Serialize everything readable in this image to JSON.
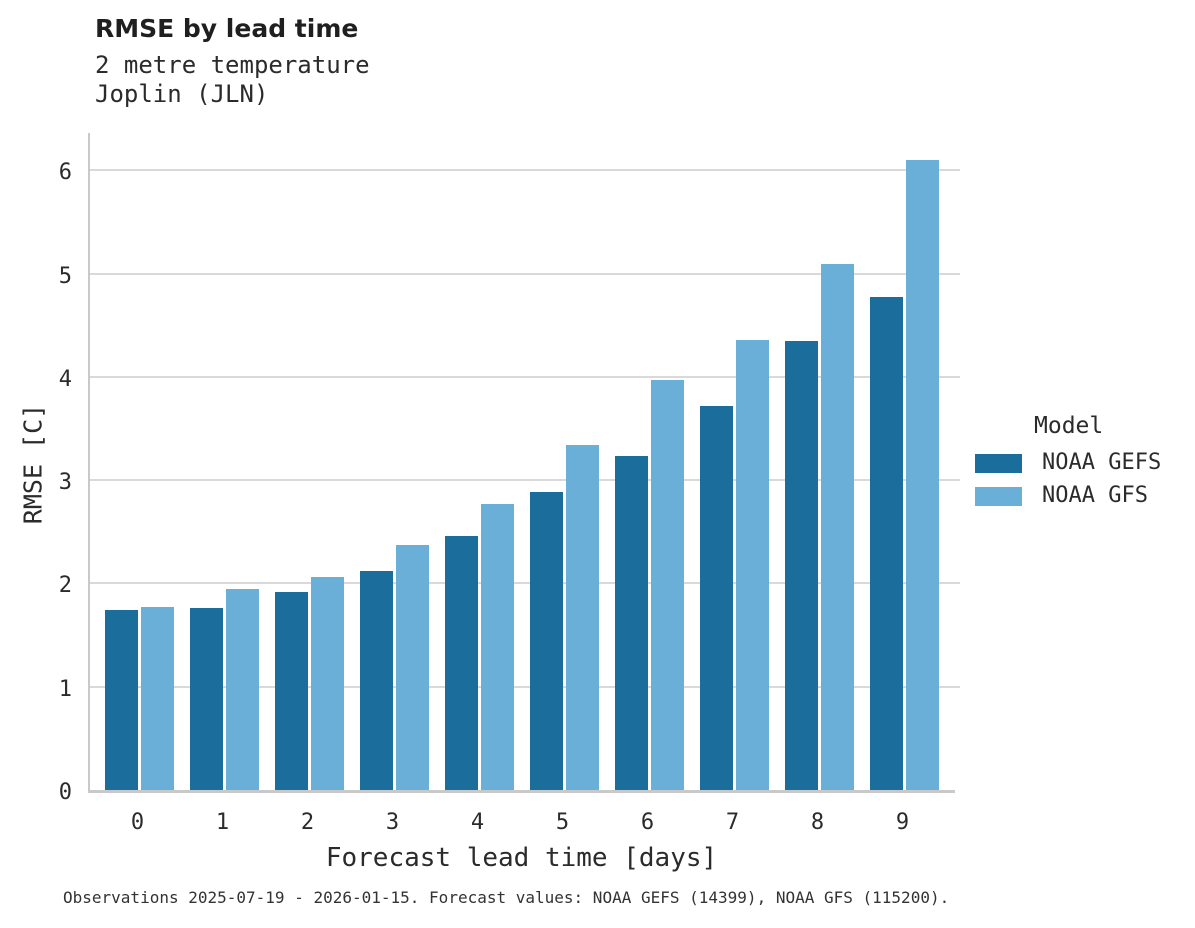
{
  "header": {
    "title": "RMSE by lead time",
    "subtitle_variable": "2 metre temperature",
    "subtitle_station": "Joplin (JLN)"
  },
  "chart_data": {
    "type": "bar",
    "title": "RMSE by lead time",
    "subtitle": [
      "2 metre temperature",
      "Joplin (JLN)"
    ],
    "categories": [
      "0",
      "1",
      "2",
      "3",
      "4",
      "5",
      "6",
      "7",
      "8",
      "9"
    ],
    "series": [
      {
        "name": "NOAA GEFS",
        "color": "#1b6e9c",
        "values": [
          1.74,
          1.76,
          1.92,
          2.12,
          2.46,
          2.89,
          3.23,
          3.72,
          4.35,
          4.77
        ]
      },
      {
        "name": "NOAA GFS",
        "color": "#6aafd8",
        "values": [
          1.77,
          1.95,
          2.06,
          2.37,
          2.77,
          3.34,
          3.97,
          4.36,
          5.09,
          6.1
        ]
      }
    ],
    "xlabel": "Forecast lead time [days]",
    "ylabel": "RMSE [C]",
    "ylim": [
      0,
      6.39
    ],
    "yticks": [
      0,
      1,
      2,
      3,
      4,
      5,
      6
    ],
    "grid": "horizontal",
    "grid_color": "#d9d9d9",
    "spine_color": "#c9c9c9",
    "legend_title": "Model",
    "legend_position": "right"
  },
  "legend": {
    "title": "Model",
    "items": [
      {
        "label": "NOAA GEFS",
        "color": "#1b6e9c"
      },
      {
        "label": "NOAA GFS",
        "color": "#6aafd8"
      }
    ]
  },
  "footnote": "Observations 2025-07-19 - 2026-01-15. Forecast values: NOAA GEFS (14399), NOAA GFS (115200)."
}
